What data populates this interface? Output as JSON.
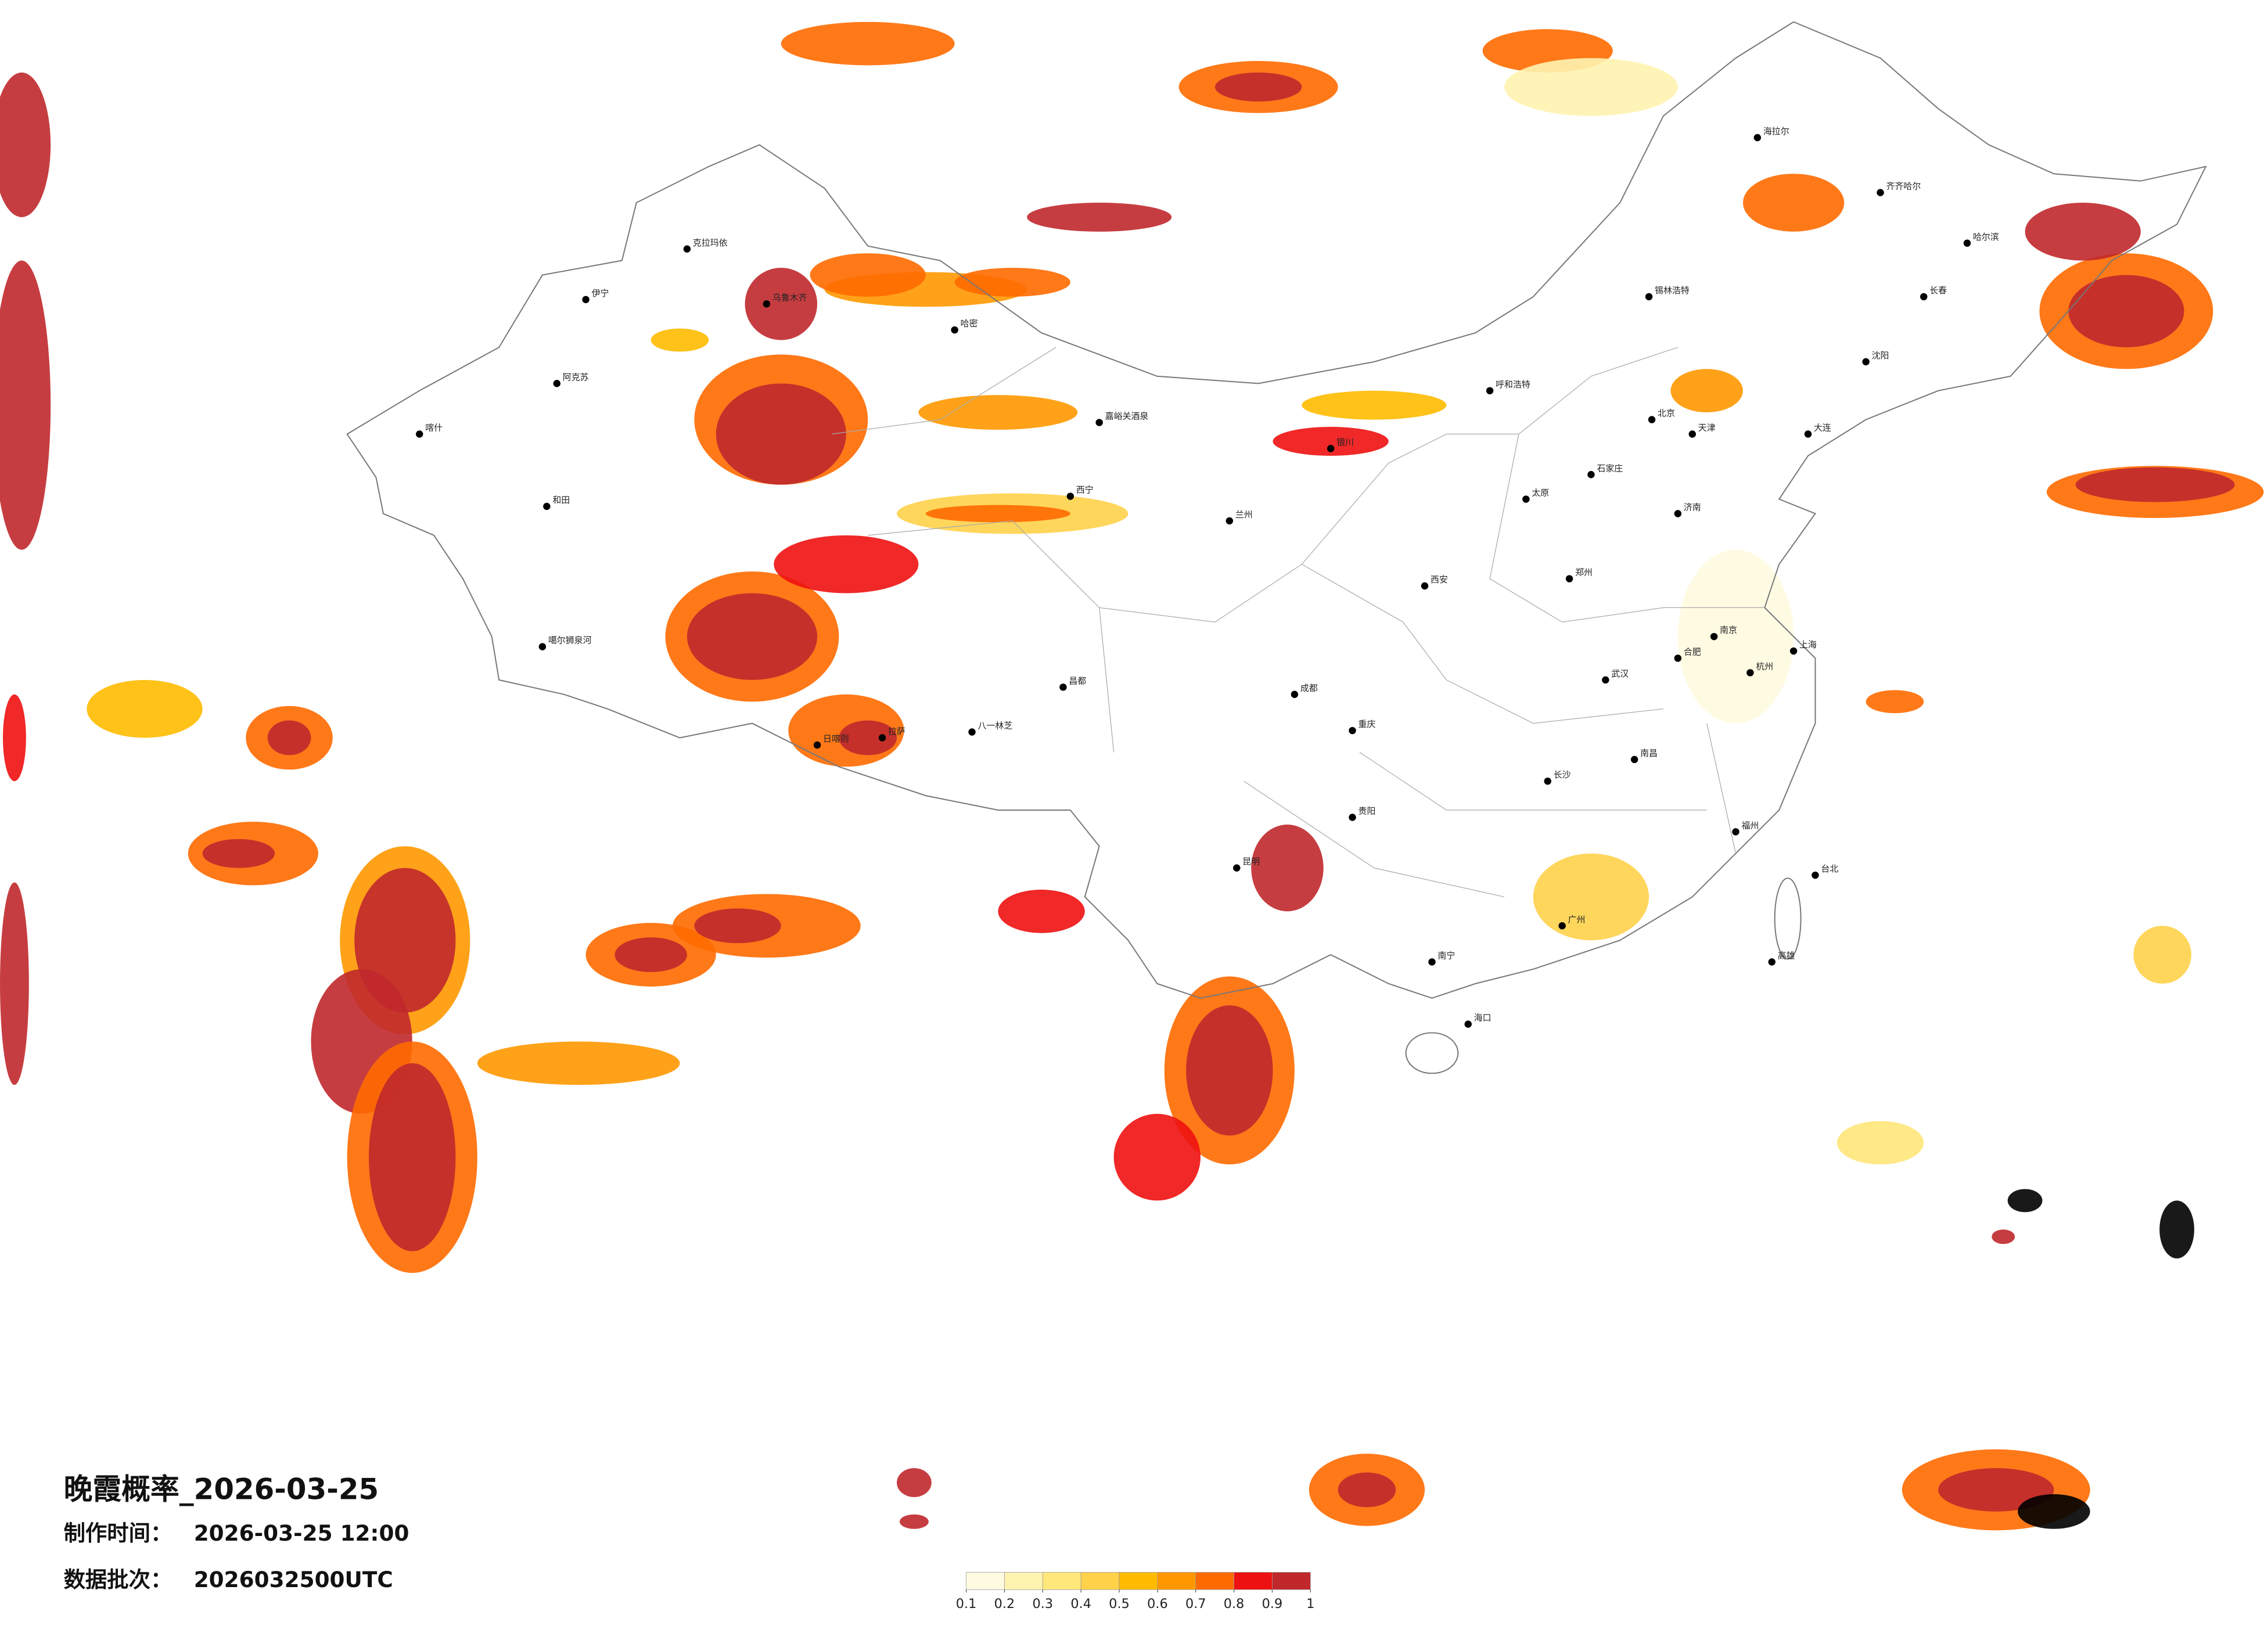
{
  "title": "晚霞概率_2026-03-25",
  "production_time_label": "制作时间：",
  "production_time": "2026-03-25 12:00",
  "batch_label": "数据批次：",
  "batch": "2026032500UTC",
  "legend": {
    "ticks": [
      0.1,
      0.2,
      0.3,
      0.4,
      0.5,
      0.6,
      0.7,
      0.8,
      0.9,
      1
    ],
    "colors": [
      "#fffbe0",
      "#fff3b0",
      "#ffe77a",
      "#ffd24a",
      "#ffbb00",
      "#ff9800",
      "#ff6a00",
      "#ee1111",
      "#c0282c"
    ]
  },
  "cities": [
    "克拉玛依",
    "乌鲁木齐",
    "伊宁",
    "阿克苏",
    "喀什",
    "和田",
    "哈密",
    "嘉峪关酒泉",
    "西宁",
    "拉萨",
    "日喀则",
    "八一林芝",
    "噶尔狮泉河",
    "昌都",
    "呼和浩特",
    "北京",
    "天津",
    "石家庄",
    "太原",
    "济南",
    "郑州",
    "西安",
    "兰州",
    "银川",
    "武汉",
    "长沙",
    "南昌",
    "杭州",
    "上海",
    "南京",
    "合肥",
    "福州",
    "广州",
    "南宁",
    "海口",
    "贵阳",
    "昆明",
    "重庆",
    "成都",
    "哈尔滨",
    "长春",
    "沈阳",
    "大连",
    "海拉尔",
    "齐齐哈尔",
    "锡林浩特",
    "台北",
    "高雄"
  ]
}
